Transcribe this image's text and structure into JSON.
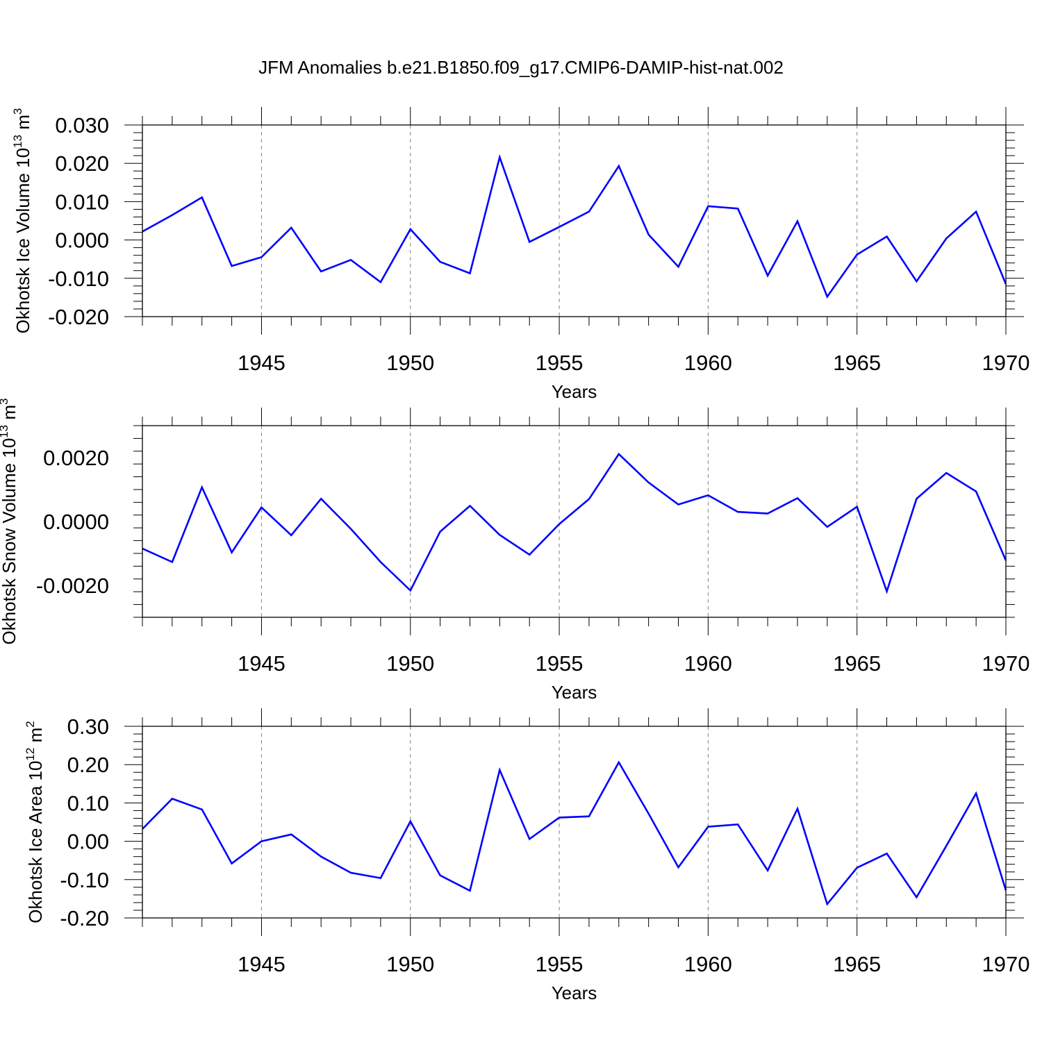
{
  "title": "JFM Anomalies b.e21.B1850.f09_g17.CMIP6-DAMIP-hist-nat.002",
  "colors": {
    "line": "#0000ff",
    "axis": "#000000",
    "grid": "#808080",
    "background": "#ffffff"
  },
  "chart_data": [
    {
      "type": "line",
      "xlabel": "Years",
      "ylabel": {
        "text": "Okhotsk Ice Volume 10",
        "sup": "13",
        "unit": " m",
        "unit_sup": "3"
      },
      "x_ticks": [
        "1945",
        "1950",
        "1955",
        "1960",
        "1965",
        "1970"
      ],
      "x_tick_values": [
        1945,
        1950,
        1955,
        1960,
        1965,
        1970
      ],
      "y_ticks": [
        "0.030",
        "0.020",
        "0.010",
        "0.000",
        "-0.010",
        "-0.020"
      ],
      "y_tick_values": [
        0.03,
        0.02,
        0.01,
        0.0,
        -0.01,
        -0.02
      ],
      "xlim": [
        1941,
        1970
      ],
      "ylim": [
        -0.02,
        0.03
      ],
      "grid": "vertical dashed at major x ticks",
      "x": [
        1941,
        1942,
        1943,
        1944,
        1945,
        1946,
        1947,
        1948,
        1949,
        1950,
        1951,
        1952,
        1953,
        1954,
        1955,
        1956,
        1957,
        1958,
        1959,
        1960,
        1961,
        1962,
        1963,
        1964,
        1965,
        1966,
        1967,
        1968,
        1969,
        1970
      ],
      "values": [
        0.0022,
        0.0065,
        0.0111,
        -0.0068,
        -0.0045,
        0.0032,
        -0.0082,
        -0.0052,
        -0.011,
        0.0028,
        -0.0057,
        -0.0087,
        0.0216,
        -0.0005,
        0.0034,
        0.0074,
        0.0193,
        0.0014,
        -0.007,
        0.0088,
        0.0082,
        -0.0093,
        0.0049,
        -0.0148,
        -0.0038,
        0.0009,
        -0.0108,
        0.0004,
        0.0074,
        -0.0115
      ]
    },
    {
      "type": "line",
      "xlabel": "Years",
      "ylabel": {
        "text": "Okhotsk Snow Volume 10",
        "sup": "13",
        "unit": " m",
        "unit_sup": "3"
      },
      "x_ticks": [
        "1945",
        "1950",
        "1955",
        "1960",
        "1965",
        "1970"
      ],
      "x_tick_values": [
        1945,
        1950,
        1955,
        1960,
        1965,
        1970
      ],
      "y_ticks": [
        "0.0020",
        "0.0000",
        "-0.0020"
      ],
      "y_tick_values": [
        0.002,
        0.0,
        -0.002
      ],
      "xlim": [
        1941,
        1970
      ],
      "ylim": [
        -0.003,
        0.003
      ],
      "grid": "vertical dashed at major x ticks",
      "x": [
        1941,
        1942,
        1943,
        1944,
        1945,
        1946,
        1947,
        1948,
        1949,
        1950,
        1951,
        1952,
        1953,
        1954,
        1955,
        1956,
        1957,
        1958,
        1959,
        1960,
        1961,
        1962,
        1963,
        1964,
        1965,
        1966,
        1967,
        1968,
        1969,
        1970
      ],
      "values": [
        -0.00085,
        -0.00127,
        0.00107,
        -0.00097,
        0.00044,
        -0.00043,
        0.00071,
        -0.00023,
        -0.00127,
        -0.00216,
        -0.00032,
        0.00049,
        -0.00042,
        -0.00104,
        -8e-05,
        0.0007,
        0.00211,
        0.00122,
        0.00053,
        0.00082,
        0.0003,
        0.00025,
        0.00073,
        -0.00017,
        0.00046,
        -0.00219,
        0.00071,
        0.00152,
        0.00094,
        -0.00122
      ]
    },
    {
      "type": "line",
      "xlabel": "Years",
      "ylabel": {
        "text": "Okhotsk Ice Area 10",
        "sup": "12",
        "unit": " m",
        "unit_sup": "2"
      },
      "x_ticks": [
        "1945",
        "1950",
        "1955",
        "1960",
        "1965",
        "1970"
      ],
      "x_tick_values": [
        1945,
        1950,
        1955,
        1960,
        1965,
        1970
      ],
      "y_ticks": [
        "0.30",
        "0.20",
        "0.10",
        "0.00",
        "-0.10",
        "-0.20"
      ],
      "y_tick_values": [
        0.3,
        0.2,
        0.1,
        0.0,
        -0.1,
        -0.2
      ],
      "xlim": [
        1941,
        1970
      ],
      "ylim": [
        -0.2,
        0.3
      ],
      "grid": "vertical dashed at major x ticks",
      "x": [
        1941,
        1942,
        1943,
        1944,
        1945,
        1946,
        1947,
        1948,
        1949,
        1950,
        1951,
        1952,
        1953,
        1954,
        1955,
        1956,
        1957,
        1958,
        1959,
        1960,
        1961,
        1962,
        1963,
        1964,
        1965,
        1966,
        1967,
        1968,
        1969,
        1970
      ],
      "values": [
        0.032,
        0.111,
        0.083,
        -0.058,
        0.0,
        0.018,
        -0.04,
        -0.082,
        -0.096,
        0.052,
        -0.089,
        -0.129,
        0.186,
        0.006,
        0.062,
        0.065,
        0.206,
        0.072,
        -0.068,
        0.038,
        0.044,
        -0.076,
        0.085,
        -0.164,
        -0.069,
        -0.032,
        -0.146,
        -0.012,
        0.125,
        -0.128
      ]
    }
  ]
}
